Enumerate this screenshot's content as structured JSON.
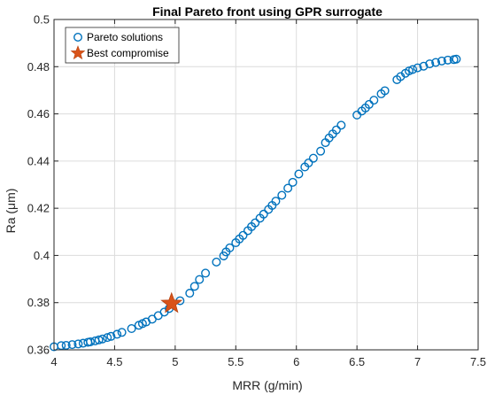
{
  "chart_data": {
    "type": "scatter",
    "title": "Final Pareto front using GPR surrogate",
    "xlabel": "MRR (g/min)",
    "ylabel": "Ra (μm)",
    "xlim": [
      4,
      7.5
    ],
    "ylim": [
      0.36,
      0.5
    ],
    "xticks": [
      4,
      4.5,
      5,
      5.5,
      6,
      6.5,
      7,
      7.5
    ],
    "xtick_labels": [
      "4",
      "4.5",
      "5",
      "5.5",
      "6",
      "6.5",
      "7",
      "7.5"
    ],
    "yticks": [
      0.36,
      0.38,
      0.4,
      0.42,
      0.44,
      0.46,
      0.48,
      0.5
    ],
    "ytick_labels": [
      "0.36",
      "0.38",
      "0.4",
      "0.42",
      "0.44",
      "0.46",
      "0.48",
      "0.5"
    ],
    "grid": true,
    "legend_position": "top-left",
    "series": [
      {
        "name": "Pareto solutions",
        "marker": "circle",
        "color": "#0072BD",
        "x": [
          4.0,
          4.06,
          4.1,
          4.15,
          4.2,
          4.24,
          4.28,
          4.3,
          4.34,
          4.37,
          4.4,
          4.44,
          4.47,
          4.52,
          4.56,
          4.64,
          4.7,
          4.73,
          4.76,
          4.81,
          4.86,
          4.91,
          4.95,
          5.04,
          5.12,
          5.16,
          5.2,
          5.25,
          5.34,
          5.4,
          5.42,
          5.45,
          5.5,
          5.53,
          5.56,
          5.6,
          5.63,
          5.66,
          5.7,
          5.73,
          5.77,
          5.8,
          5.83,
          5.88,
          5.93,
          5.97,
          6.02,
          6.07,
          6.1,
          6.14,
          6.2,
          6.24,
          6.27,
          6.3,
          6.33,
          6.37,
          6.5,
          6.54,
          6.57,
          6.6,
          6.64,
          6.7,
          6.73,
          6.83,
          6.86,
          6.9,
          6.93,
          6.96,
          7.0,
          7.05,
          7.1,
          7.15,
          7.2,
          7.25,
          7.3,
          7.32
        ],
        "y": [
          0.3613,
          0.3618,
          0.3619,
          0.3622,
          0.3625,
          0.3628,
          0.3632,
          0.3634,
          0.3638,
          0.3642,
          0.3646,
          0.3652,
          0.3657,
          0.3666,
          0.3674,
          0.369,
          0.3704,
          0.3711,
          0.3718,
          0.373,
          0.3745,
          0.376,
          0.3775,
          0.3808,
          0.384,
          0.3869,
          0.3898,
          0.3925,
          0.3972,
          0.3998,
          0.4015,
          0.4032,
          0.4054,
          0.407,
          0.4085,
          0.4105,
          0.4122,
          0.4138,
          0.4158,
          0.4175,
          0.4195,
          0.4212,
          0.423,
          0.4255,
          0.4285,
          0.431,
          0.4345,
          0.4375,
          0.4392,
          0.4412,
          0.4442,
          0.4478,
          0.4498,
          0.4515,
          0.4532,
          0.4552,
          0.4595,
          0.4612,
          0.4625,
          0.464,
          0.4658,
          0.4685,
          0.4698,
          0.4745,
          0.4758,
          0.4772,
          0.4782,
          0.4788,
          0.4795,
          0.4802,
          0.4812,
          0.4818,
          0.4824,
          0.4828,
          0.483,
          0.4832
        ]
      },
      {
        "name": "Best compromise",
        "marker": "star",
        "color": "#D95319",
        "x": [
          4.97
        ],
        "y": [
          0.3796
        ]
      }
    ]
  }
}
